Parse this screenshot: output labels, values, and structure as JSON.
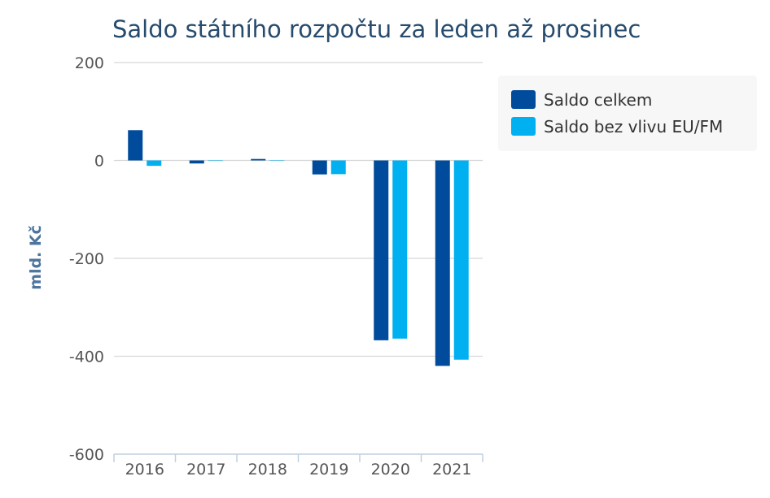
{
  "chart_data": {
    "type": "bar",
    "title": "Saldo státního rozpočtu za leden až prosinec",
    "ylabel": "mld. Kč",
    "xlabel": "",
    "categories": [
      "2016",
      "2017",
      "2018",
      "2019",
      "2020",
      "2021"
    ],
    "series": [
      {
        "name": "Saldo celkem",
        "color": "#004b9b",
        "values": [
          61.8,
          -6.2,
          3.0,
          -28.5,
          -367.4,
          -419.7
        ]
      },
      {
        "name": "Saldo bez vlivu EU/FM",
        "color": "#00b0f0",
        "values": [
          -11.0,
          -1.0,
          0.0,
          -28.0,
          -364.0,
          -407.0
        ]
      }
    ],
    "ylim": [
      -600,
      200
    ],
    "yticks": [
      -600,
      -400,
      -200,
      0,
      200
    ],
    "grid": true,
    "legend_position": "top-right"
  }
}
